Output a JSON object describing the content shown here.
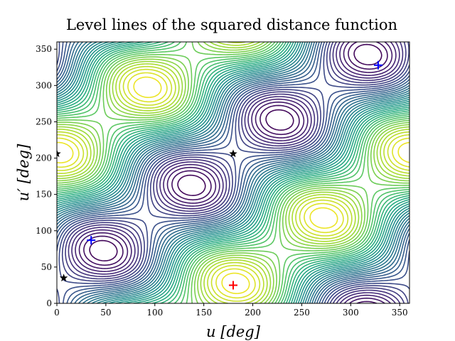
{
  "chart_data": {
    "type": "contour",
    "title": "Level lines of the squared distance function",
    "xlabel": "u [deg]",
    "ylabel": "u′ [deg]",
    "xlim": [
      0,
      360
    ],
    "ylim": [
      0,
      360
    ],
    "xticks": [
      0,
      50,
      100,
      150,
      200,
      250,
      300,
      350
    ],
    "yticks": [
      0,
      50,
      100,
      150,
      200,
      250,
      300,
      350
    ],
    "markers": [
      {
        "marker": "plus",
        "color": "#0000ff",
        "x": [
          35,
          328
        ],
        "y": [
          87,
          328
        ]
      },
      {
        "marker": "plus",
        "color": "#ff0000",
        "x": [
          180
        ],
        "y": [
          25
        ]
      },
      {
        "marker": "star",
        "color": "#000000",
        "x": [
          0,
          180,
          7
        ],
        "y": [
          206,
          206,
          35
        ]
      }
    ]
  }
}
